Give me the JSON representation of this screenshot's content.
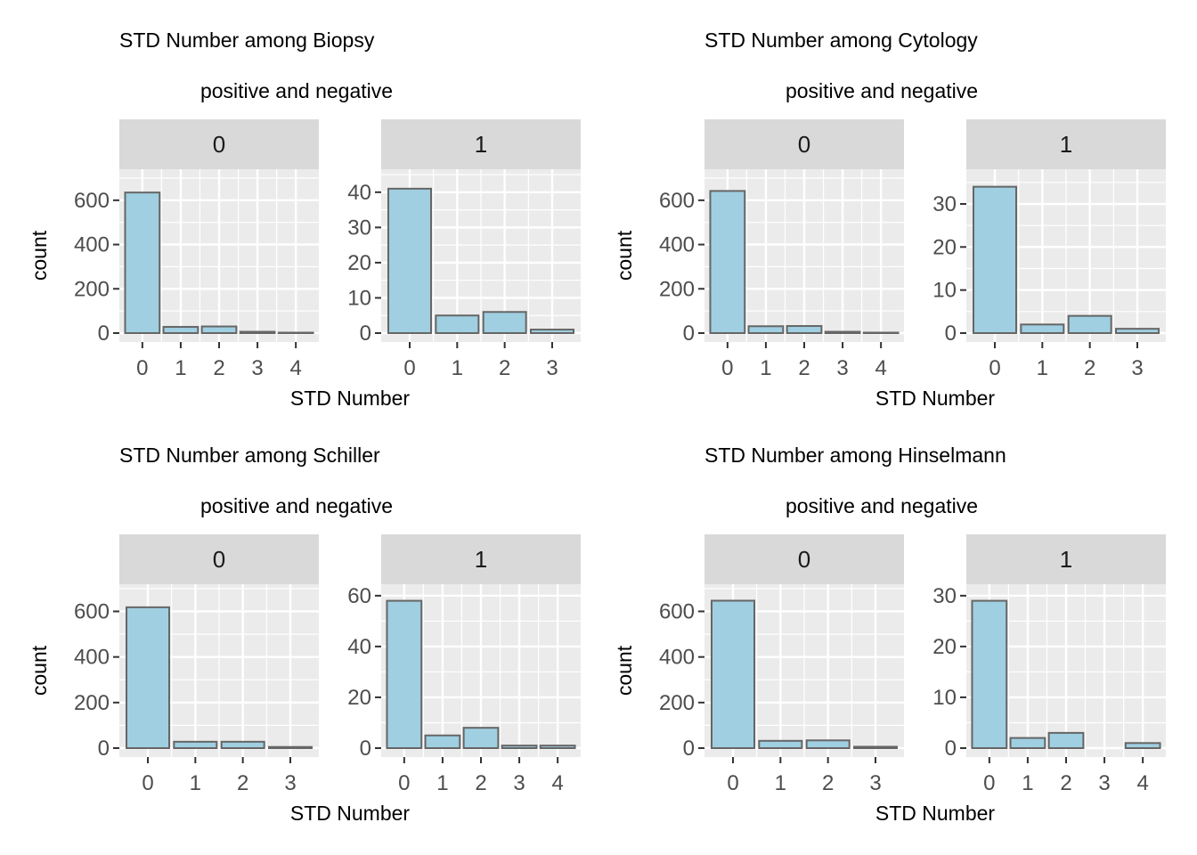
{
  "colors": {
    "panel_bg": "#ebebeb",
    "strip_bg": "#d9d9d9",
    "grid": "#ffffff",
    "bar_fill": "#9fcfe1",
    "bar_stroke": "#666666",
    "tick": "#333333"
  },
  "chart_data": [
    {
      "type": "bar",
      "title": "STD Number among Biopsy",
      "subtitle": "positive and negative",
      "xlabel": "STD Number",
      "ylabel": "count",
      "grid": true,
      "facets": [
        {
          "strip": "0",
          "categories": [
            "0",
            "1",
            "2",
            "3",
            "4"
          ],
          "values": [
            635,
            28,
            30,
            6,
            2
          ],
          "ylim": [
            0,
            700
          ],
          "yticks": [
            0,
            200,
            400,
            600
          ]
        },
        {
          "strip": "1",
          "categories": [
            "0",
            "1",
            "2",
            "3"
          ],
          "values": [
            41,
            5,
            6,
            1
          ],
          "ylim": [
            0,
            44
          ],
          "yticks": [
            0,
            10,
            20,
            30,
            40
          ]
        }
      ]
    },
    {
      "type": "bar",
      "title": "STD Number among Cytology",
      "subtitle": "positive and negative",
      "xlabel": "STD Number",
      "ylabel": "count",
      "grid": true,
      "facets": [
        {
          "strip": "0",
          "categories": [
            "0",
            "1",
            "2",
            "3",
            "4"
          ],
          "values": [
            642,
            31,
            32,
            6,
            2
          ],
          "ylim": [
            0,
            700
          ],
          "yticks": [
            0,
            200,
            400,
            600
          ]
        },
        {
          "strip": "1",
          "categories": [
            "0",
            "1",
            "2",
            "3"
          ],
          "values": [
            34,
            2,
            4,
            1
          ],
          "ylim": [
            0,
            36
          ],
          "yticks": [
            0,
            10,
            20,
            30
          ]
        }
      ]
    },
    {
      "type": "bar",
      "title": "STD Number among Schiller",
      "subtitle": "positive and negative",
      "xlabel": "STD Number",
      "ylabel": "count",
      "grid": true,
      "facets": [
        {
          "strip": "0",
          "categories": [
            "0",
            "1",
            "2",
            "3"
          ],
          "values": [
            618,
            28,
            28,
            5
          ],
          "ylim": [
            0,
            680
          ],
          "yticks": [
            0,
            200,
            400,
            600
          ]
        },
        {
          "strip": "1",
          "categories": [
            "0",
            "1",
            "2",
            "3",
            "4"
          ],
          "values": [
            58,
            5,
            8,
            1,
            1
          ],
          "ylim": [
            0,
            61
          ],
          "yticks": [
            0,
            20,
            40,
            60
          ]
        }
      ]
    },
    {
      "type": "bar",
      "title": "STD Number among Hinselmann",
      "subtitle": "positive and negative",
      "xlabel": "STD Number",
      "ylabel": "count",
      "grid": true,
      "facets": [
        {
          "strip": "0",
          "categories": [
            "0",
            "1",
            "2",
            "3"
          ],
          "values": [
            647,
            32,
            34,
            6
          ],
          "ylim": [
            0,
            680
          ],
          "yticks": [
            0,
            200,
            400,
            600
          ]
        },
        {
          "strip": "1",
          "categories": [
            "0",
            "1",
            "2",
            "3",
            "4"
          ],
          "values": [
            29,
            2,
            3,
            0,
            1
          ],
          "ylim": [
            0,
            30.5
          ],
          "yticks": [
            0,
            10,
            20,
            30
          ]
        }
      ]
    }
  ]
}
